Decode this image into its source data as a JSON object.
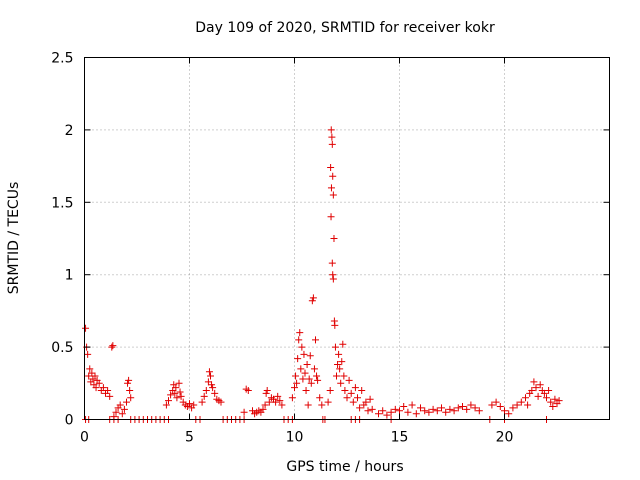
{
  "chart_data": {
    "type": "scatter",
    "title": "Day 109 of 2020, SRMTID for receiver kokr",
    "xlabel": "GPS time / hours",
    "ylabel": "SRMTID / TECUs",
    "xlim": [
      0,
      25
    ],
    "ylim": [
      0,
      2.5
    ],
    "xticks": [
      0,
      5,
      10,
      15,
      20
    ],
    "xtick_labels": [
      "0",
      "5",
      "10",
      "15",
      "20"
    ],
    "yticks": [
      0,
      0.5,
      1,
      1.5,
      2,
      2.5
    ],
    "ytick_labels": [
      "0",
      "0.5",
      "1",
      "1.5",
      "2",
      "2.5"
    ],
    "grid": true,
    "marker": "plus",
    "color": "#e00000",
    "series": [
      {
        "name": "SRMTID",
        "points": [
          [
            0.05,
            0.63
          ],
          [
            0.1,
            0.5
          ],
          [
            0.15,
            0.45
          ],
          [
            0.2,
            0.3
          ],
          [
            0.25,
            0.35
          ],
          [
            0.3,
            0.26
          ],
          [
            0.35,
            0.32
          ],
          [
            0.4,
            0.28
          ],
          [
            0.45,
            0.24
          ],
          [
            0.5,
            0.3
          ],
          [
            0.55,
            0.22
          ],
          [
            0.6,
            0.27
          ],
          [
            0.7,
            0.25
          ],
          [
            0.8,
            0.2
          ],
          [
            0.9,
            0.22
          ],
          [
            1.0,
            0.18
          ],
          [
            1.1,
            0.2
          ],
          [
            1.2,
            0.16
          ],
          [
            1.3,
            0.5
          ],
          [
            1.35,
            0.51
          ],
          [
            1.4,
            0.02
          ],
          [
            1.5,
            0.05
          ],
          [
            1.6,
            0.08
          ],
          [
            1.7,
            0.1
          ],
          [
            1.8,
            0.04
          ],
          [
            1.9,
            0.07
          ],
          [
            2.0,
            0.12
          ],
          [
            2.05,
            0.25
          ],
          [
            2.1,
            0.27
          ],
          [
            2.15,
            0.2
          ],
          [
            2.2,
            0.15
          ],
          [
            3.9,
            0.1
          ],
          [
            4.0,
            0.13
          ],
          [
            4.1,
            0.17
          ],
          [
            4.2,
            0.2
          ],
          [
            4.25,
            0.24
          ],
          [
            4.3,
            0.18
          ],
          [
            4.35,
            0.22
          ],
          [
            4.4,
            0.15
          ],
          [
            4.5,
            0.25
          ],
          [
            4.55,
            0.19
          ],
          [
            4.6,
            0.16
          ],
          [
            4.7,
            0.12
          ],
          [
            4.8,
            0.1
          ],
          [
            4.9,
            0.09
          ],
          [
            5.0,
            0.11
          ],
          [
            5.1,
            0.08
          ],
          [
            5.2,
            0.1
          ],
          [
            5.6,
            0.12
          ],
          [
            5.7,
            0.16
          ],
          [
            5.8,
            0.2
          ],
          [
            5.9,
            0.26
          ],
          [
            5.95,
            0.33
          ],
          [
            6.0,
            0.3
          ],
          [
            6.05,
            0.24
          ],
          [
            6.1,
            0.22
          ],
          [
            6.2,
            0.18
          ],
          [
            6.3,
            0.14
          ],
          [
            6.4,
            0.13
          ],
          [
            6.5,
            0.12
          ],
          [
            7.6,
            0.05
          ],
          [
            7.7,
            0.21
          ],
          [
            7.8,
            0.2
          ],
          [
            8.0,
            0.06
          ],
          [
            8.1,
            0.04
          ],
          [
            8.2,
            0.05
          ],
          [
            8.3,
            0.06
          ],
          [
            8.4,
            0.05
          ],
          [
            8.5,
            0.07
          ],
          [
            8.6,
            0.1
          ],
          [
            8.65,
            0.18
          ],
          [
            8.7,
            0.2
          ],
          [
            8.8,
            0.12
          ],
          [
            8.9,
            0.15
          ],
          [
            9.0,
            0.14
          ],
          [
            9.1,
            0.12
          ],
          [
            9.2,
            0.16
          ],
          [
            9.3,
            0.13
          ],
          [
            9.4,
            0.1
          ],
          [
            9.9,
            0.15
          ],
          [
            10.0,
            0.22
          ],
          [
            10.05,
            0.3
          ],
          [
            10.1,
            0.25
          ],
          [
            10.15,
            0.42
          ],
          [
            10.2,
            0.55
          ],
          [
            10.25,
            0.6
          ],
          [
            10.3,
            0.35
          ],
          [
            10.35,
            0.5
          ],
          [
            10.4,
            0.28
          ],
          [
            10.45,
            0.45
          ],
          [
            10.5,
            0.32
          ],
          [
            10.55,
            0.2
          ],
          [
            10.6,
            0.38
          ],
          [
            10.65,
            0.1
          ],
          [
            10.7,
            0.28
          ],
          [
            10.75,
            0.44
          ],
          [
            10.8,
            0.25
          ],
          [
            10.85,
            0.82
          ],
          [
            10.9,
            0.84
          ],
          [
            10.95,
            0.35
          ],
          [
            11.0,
            0.55
          ],
          [
            11.05,
            0.3
          ],
          [
            11.1,
            0.27
          ],
          [
            11.2,
            0.15
          ],
          [
            11.3,
            0.1
          ],
          [
            11.6,
            0.12
          ],
          [
            11.7,
            0.2
          ],
          [
            11.72,
            1.74
          ],
          [
            11.75,
            2.0
          ],
          [
            11.78,
            1.95
          ],
          [
            11.8,
            1.9
          ],
          [
            11.82,
            1.68
          ],
          [
            11.85,
            1.55
          ],
          [
            11.74,
            1.4
          ],
          [
            11.76,
            1.6
          ],
          [
            11.88,
            1.25
          ],
          [
            11.8,
            1.08
          ],
          [
            11.82,
            1.0
          ],
          [
            11.85,
            0.97
          ],
          [
            11.9,
            0.68
          ],
          [
            11.92,
            0.65
          ],
          [
            11.95,
            0.5
          ],
          [
            12.0,
            0.3
          ],
          [
            12.05,
            0.38
          ],
          [
            12.1,
            0.45
          ],
          [
            12.15,
            0.35
          ],
          [
            12.2,
            0.25
          ],
          [
            12.25,
            0.4
          ],
          [
            12.3,
            0.52
          ],
          [
            12.35,
            0.3
          ],
          [
            12.4,
            0.2
          ],
          [
            12.5,
            0.15
          ],
          [
            12.6,
            0.27
          ],
          [
            12.7,
            0.18
          ],
          [
            12.8,
            0.12
          ],
          [
            12.9,
            0.22
          ],
          [
            13.0,
            0.15
          ],
          [
            13.1,
            0.08
          ],
          [
            13.2,
            0.2
          ],
          [
            13.3,
            0.1
          ],
          [
            13.4,
            0.12
          ],
          [
            13.5,
            0.06
          ],
          [
            13.6,
            0.14
          ],
          [
            13.7,
            0.07
          ],
          [
            14.0,
            0.04
          ],
          [
            14.2,
            0.06
          ],
          [
            14.4,
            0.03
          ],
          [
            14.6,
            0.05
          ],
          [
            14.8,
            0.07
          ],
          [
            15.0,
            0.06
          ],
          [
            15.2,
            0.09
          ],
          [
            15.4,
            0.05
          ],
          [
            15.6,
            0.1
          ],
          [
            15.8,
            0.04
          ],
          [
            16.0,
            0.08
          ],
          [
            16.2,
            0.06
          ],
          [
            16.4,
            0.05
          ],
          [
            16.6,
            0.07
          ],
          [
            16.8,
            0.06
          ],
          [
            17.0,
            0.08
          ],
          [
            17.2,
            0.05
          ],
          [
            17.4,
            0.07
          ],
          [
            17.6,
            0.06
          ],
          [
            17.8,
            0.08
          ],
          [
            18.0,
            0.09
          ],
          [
            18.2,
            0.07
          ],
          [
            18.4,
            0.1
          ],
          [
            18.6,
            0.08
          ],
          [
            18.8,
            0.06
          ],
          [
            19.4,
            0.1
          ],
          [
            19.6,
            0.12
          ],
          [
            19.8,
            0.09
          ],
          [
            20.0,
            0.06
          ],
          [
            20.2,
            0.04
          ],
          [
            20.4,
            0.08
          ],
          [
            20.6,
            0.1
          ],
          [
            20.8,
            0.12
          ],
          [
            21.0,
            0.15
          ],
          [
            21.1,
            0.1
          ],
          [
            21.2,
            0.18
          ],
          [
            21.3,
            0.2
          ],
          [
            21.4,
            0.26
          ],
          [
            21.5,
            0.22
          ],
          [
            21.6,
            0.16
          ],
          [
            21.7,
            0.24
          ],
          [
            21.8,
            0.2
          ],
          [
            21.9,
            0.18
          ],
          [
            22.0,
            0.15
          ],
          [
            22.1,
            0.2
          ],
          [
            22.2,
            0.12
          ],
          [
            22.3,
            0.09
          ],
          [
            22.4,
            0.14
          ],
          [
            22.5,
            0.11
          ],
          [
            22.6,
            0.13
          ]
        ],
        "zero_points_x": [
          0.05,
          0.2,
          1.2,
          1.4,
          1.6,
          2.2,
          2.4,
          2.6,
          2.8,
          3.0,
          3.2,
          3.4,
          3.6,
          3.8,
          4.0,
          5.3,
          5.5,
          6.6,
          6.8,
          7.0,
          7.2,
          7.4,
          7.6,
          9.5,
          9.7,
          9.9,
          11.35,
          11.45,
          12.7,
          12.9,
          13.1,
          14.6,
          19.3,
          20.0,
          22.0
        ]
      }
    ]
  }
}
